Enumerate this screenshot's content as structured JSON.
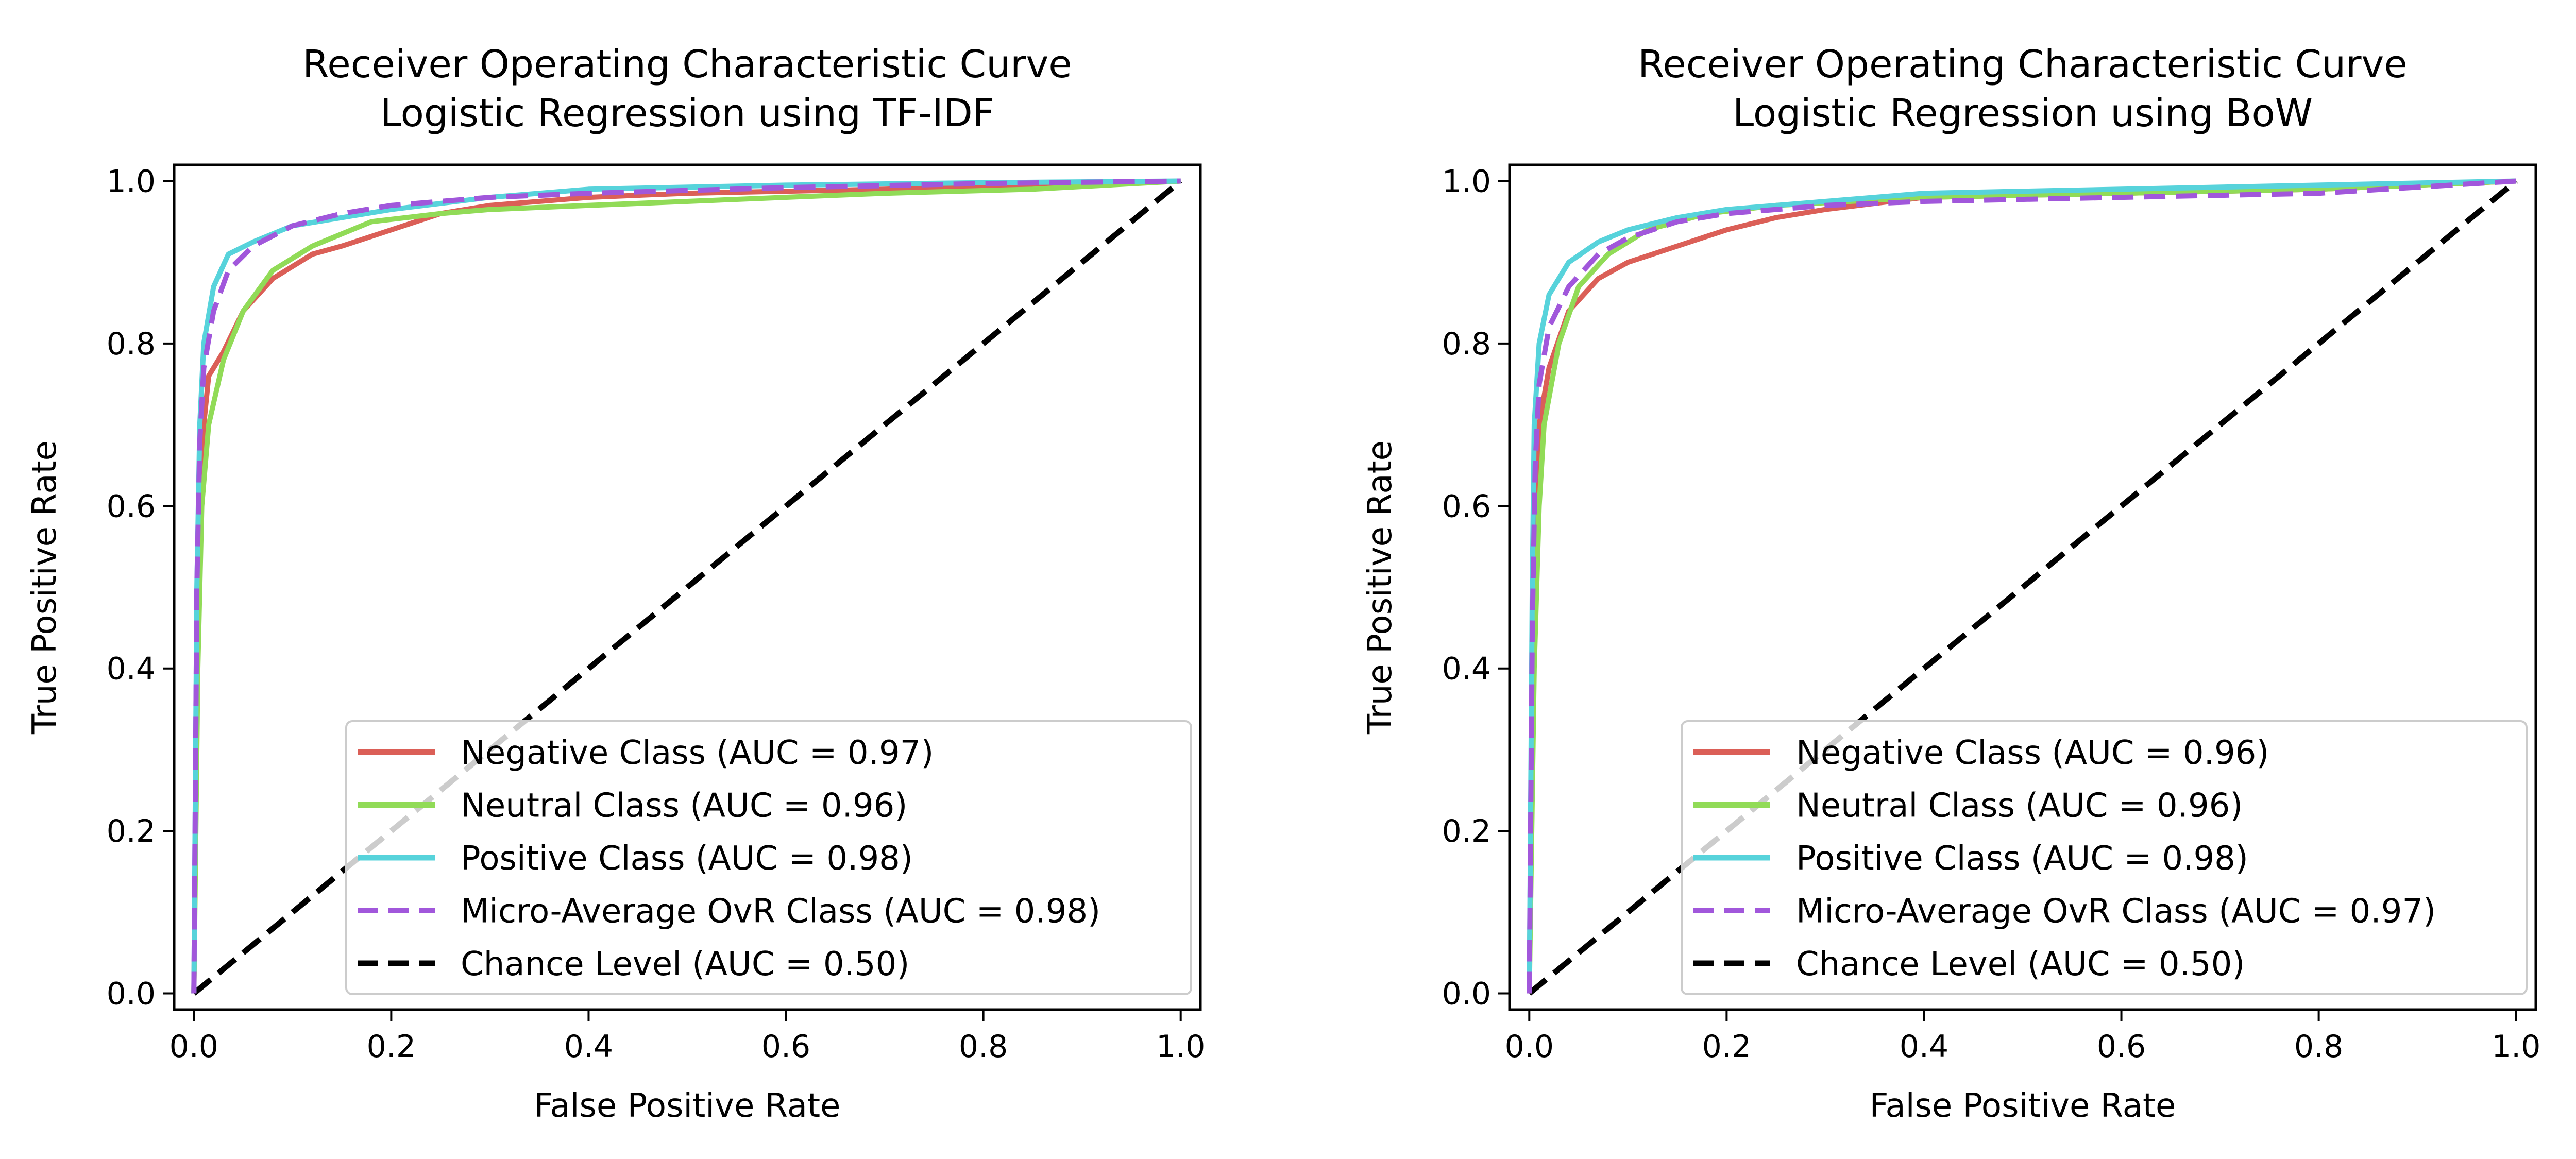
{
  "chart_data": [
    {
      "type": "line",
      "title": "Receiver Operating Characteristic Curve",
      "subtitle": "Logistic Regression using TF-IDF",
      "xlabel": "False Positive Rate",
      "ylabel": "True Positive Rate",
      "xlim": [
        -0.02,
        1.02
      ],
      "ylim": [
        -0.02,
        1.02
      ],
      "xticks": [
        "0.0",
        "0.2",
        "0.4",
        "0.6",
        "0.8",
        "1.0"
      ],
      "yticks": [
        "0.0",
        "0.2",
        "0.4",
        "0.6",
        "0.8",
        "1.0"
      ],
      "grid": false,
      "legend_position": "lower-right",
      "series": [
        {
          "name": "Negative Class (AUC = 0.97)",
          "color": "#db5f57",
          "dash": "solid",
          "points": [
            [
              0,
              0
            ],
            [
              0.003,
              0.4
            ],
            [
              0.006,
              0.6
            ],
            [
              0.01,
              0.7
            ],
            [
              0.015,
              0.76
            ],
            [
              0.03,
              0.79
            ],
            [
              0.05,
              0.84
            ],
            [
              0.08,
              0.88
            ],
            [
              0.12,
              0.91
            ],
            [
              0.15,
              0.92
            ],
            [
              0.2,
              0.94
            ],
            [
              0.25,
              0.96
            ],
            [
              0.3,
              0.97
            ],
            [
              0.4,
              0.98
            ],
            [
              0.5,
              0.985
            ],
            [
              0.7,
              0.99
            ],
            [
              0.85,
              0.995
            ],
            [
              1,
              1
            ]
          ]
        },
        {
          "name": "Neutral Class (AUC = 0.96)",
          "color": "#91db57",
          "dash": "solid",
          "points": [
            [
              0,
              0
            ],
            [
              0.004,
              0.4
            ],
            [
              0.008,
              0.6
            ],
            [
              0.015,
              0.7
            ],
            [
              0.03,
              0.78
            ],
            [
              0.05,
              0.84
            ],
            [
              0.08,
              0.89
            ],
            [
              0.12,
              0.92
            ],
            [
              0.18,
              0.95
            ],
            [
              0.25,
              0.96
            ],
            [
              0.3,
              0.965
            ],
            [
              0.4,
              0.97
            ],
            [
              0.5,
              0.975
            ],
            [
              0.7,
              0.985
            ],
            [
              0.85,
              0.99
            ],
            [
              1,
              1
            ]
          ]
        },
        {
          "name": "Positive Class (AUC = 0.98)",
          "color": "#57d3db",
          "dash": "solid",
          "points": [
            [
              0,
              0
            ],
            [
              0.003,
              0.5
            ],
            [
              0.006,
              0.7
            ],
            [
              0.01,
              0.8
            ],
            [
              0.02,
              0.87
            ],
            [
              0.035,
              0.91
            ],
            [
              0.06,
              0.925
            ],
            [
              0.1,
              0.945
            ],
            [
              0.15,
              0.955
            ],
            [
              0.2,
              0.965
            ],
            [
              0.3,
              0.98
            ],
            [
              0.4,
              0.99
            ],
            [
              0.6,
              0.995
            ],
            [
              0.8,
              0.998
            ],
            [
              1,
              1
            ]
          ]
        },
        {
          "name": "Micro-Average OvR Class (AUC = 0.98)",
          "color": "#a157db",
          "dash": "dashed",
          "points": [
            [
              0,
              0
            ],
            [
              0.003,
              0.5
            ],
            [
              0.006,
              0.68
            ],
            [
              0.01,
              0.77
            ],
            [
              0.02,
              0.84
            ],
            [
              0.035,
              0.89
            ],
            [
              0.06,
              0.92
            ],
            [
              0.1,
              0.945
            ],
            [
              0.15,
              0.96
            ],
            [
              0.2,
              0.97
            ],
            [
              0.3,
              0.98
            ],
            [
              0.4,
              0.985
            ],
            [
              0.6,
              0.992
            ],
            [
              0.8,
              0.997
            ],
            [
              1,
              1
            ]
          ]
        },
        {
          "name": "Chance Level (AUC = 0.50)",
          "color": "#000000",
          "dash": "dashed",
          "points": [
            [
              0,
              0
            ],
            [
              1,
              1
            ]
          ]
        }
      ]
    },
    {
      "type": "line",
      "title": "Receiver Operating Characteristic Curve",
      "subtitle": "Logistic Regression using BoW",
      "xlabel": "False Positive Rate",
      "ylabel": "True Positive Rate",
      "xlim": [
        -0.02,
        1.02
      ],
      "ylim": [
        -0.02,
        1.02
      ],
      "xticks": [
        "0.0",
        "0.2",
        "0.4",
        "0.6",
        "0.8",
        "1.0"
      ],
      "yticks": [
        "0.0",
        "0.2",
        "0.4",
        "0.6",
        "0.8",
        "1.0"
      ],
      "grid": false,
      "legend_position": "lower-right",
      "series": [
        {
          "name": "Negative Class (AUC = 0.96)",
          "color": "#db5f57",
          "dash": "solid",
          "points": [
            [
              0,
              0
            ],
            [
              0.003,
              0.4
            ],
            [
              0.006,
              0.6
            ],
            [
              0.01,
              0.7
            ],
            [
              0.02,
              0.77
            ],
            [
              0.04,
              0.84
            ],
            [
              0.07,
              0.88
            ],
            [
              0.1,
              0.9
            ],
            [
              0.15,
              0.92
            ],
            [
              0.2,
              0.94
            ],
            [
              0.25,
              0.955
            ],
            [
              0.3,
              0.965
            ],
            [
              0.4,
              0.98
            ],
            [
              0.6,
              0.985
            ],
            [
              0.8,
              0.99
            ],
            [
              1,
              1
            ]
          ]
        },
        {
          "name": "Neutral Class (AUC = 0.96)",
          "color": "#91db57",
          "dash": "solid",
          "points": [
            [
              0,
              0
            ],
            [
              0.005,
              0.4
            ],
            [
              0.01,
              0.6
            ],
            [
              0.015,
              0.7
            ],
            [
              0.03,
              0.8
            ],
            [
              0.05,
              0.87
            ],
            [
              0.08,
              0.91
            ],
            [
              0.12,
              0.94
            ],
            [
              0.18,
              0.96
            ],
            [
              0.25,
              0.97
            ],
            [
              0.4,
              0.98
            ],
            [
              0.6,
              0.985
            ],
            [
              0.8,
              0.99
            ],
            [
              1,
              1
            ]
          ]
        },
        {
          "name": "Positive Class (AUC = 0.98)",
          "color": "#57d3db",
          "dash": "solid",
          "points": [
            [
              0,
              0
            ],
            [
              0.003,
              0.5
            ],
            [
              0.005,
              0.7
            ],
            [
              0.01,
              0.8
            ],
            [
              0.02,
              0.86
            ],
            [
              0.04,
              0.9
            ],
            [
              0.07,
              0.925
            ],
            [
              0.1,
              0.94
            ],
            [
              0.15,
              0.955
            ],
            [
              0.2,
              0.965
            ],
            [
              0.3,
              0.975
            ],
            [
              0.4,
              0.985
            ],
            [
              0.6,
              0.99
            ],
            [
              0.8,
              0.995
            ],
            [
              1,
              1
            ]
          ]
        },
        {
          "name": "Micro-Average OvR Class (AUC = 0.97)",
          "color": "#a157db",
          "dash": "dashed",
          "points": [
            [
              0,
              0
            ],
            [
              0.003,
              0.45
            ],
            [
              0.006,
              0.65
            ],
            [
              0.01,
              0.75
            ],
            [
              0.02,
              0.82
            ],
            [
              0.04,
              0.87
            ],
            [
              0.07,
              0.91
            ],
            [
              0.1,
              0.93
            ],
            [
              0.15,
              0.95
            ],
            [
              0.2,
              0.96
            ],
            [
              0.3,
              0.97
            ],
            [
              0.4,
              0.975
            ],
            [
              0.6,
              0.98
            ],
            [
              0.8,
              0.985
            ],
            [
              1,
              1
            ]
          ]
        },
        {
          "name": "Chance Level (AUC = 0.50)",
          "color": "#000000",
          "dash": "dashed",
          "points": [
            [
              0,
              0
            ],
            [
              1,
              1
            ]
          ]
        }
      ]
    }
  ]
}
